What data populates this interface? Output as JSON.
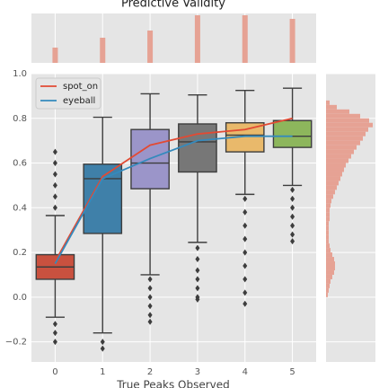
{
  "chart_data": {
    "type": "box",
    "title": "Predictive Validity",
    "xlabel": "True Peaks Observed",
    "categories": [
      "0",
      "1",
      "2",
      "3",
      "4",
      "5"
    ],
    "ylim": [
      -0.29,
      1.0
    ],
    "yticks": [
      {
        "value": -0.2,
        "label": "−0.2"
      },
      {
        "value": 0.0,
        "label": "0.0"
      },
      0.2,
      0.4,
      0.6,
      0.8,
      {
        "value": 1.0,
        "label": "1.0"
      }
    ],
    "grid": true,
    "legend": "upper left",
    "boxes": [
      {
        "whisker_low": -0.09,
        "q1": 0.08,
        "median": 0.135,
        "q3": 0.19,
        "whisker_high": 0.365,
        "color": "#c9513f",
        "fliers": [
          0.4,
          0.45,
          0.5,
          0.55,
          0.6,
          0.65,
          -0.12,
          -0.16,
          -0.2
        ]
      },
      {
        "whisker_low": -0.16,
        "q1": 0.285,
        "median": 0.53,
        "q3": 0.595,
        "whisker_high": 0.805,
        "color": "#3f80a9",
        "fliers": [
          -0.2,
          -0.23
        ]
      },
      {
        "whisker_low": 0.1,
        "q1": 0.485,
        "median": 0.6,
        "q3": 0.75,
        "whisker_high": 0.91,
        "color": "#9b95c9",
        "fliers": [
          0.08,
          0.04,
          0.0,
          -0.04,
          -0.08,
          -0.11
        ]
      },
      {
        "whisker_low": 0.245,
        "q1": 0.56,
        "median": 0.695,
        "q3": 0.775,
        "whisker_high": 0.905,
        "color": "#777777",
        "fliers": [
          0.22,
          0.17,
          0.12,
          0.08,
          0.04,
          0.0,
          -0.01
        ]
      },
      {
        "whisker_low": 0.46,
        "q1": 0.65,
        "median": 0.725,
        "q3": 0.78,
        "whisker_high": 0.925,
        "color": "#e9b96b",
        "fliers": [
          0.44,
          0.38,
          0.32,
          0.26,
          0.2,
          0.14,
          0.08,
          0.02,
          -0.03
        ]
      },
      {
        "whisker_low": 0.5,
        "q1": 0.67,
        "median": 0.72,
        "q3": 0.79,
        "whisker_high": 0.935,
        "color": "#8db65c",
        "fliers": [
          0.48,
          0.44,
          0.4,
          0.36,
          0.32,
          0.28,
          0.25
        ]
      }
    ],
    "series": [
      {
        "name": "spot_on",
        "color": "#e24a33",
        "values": [
          0.16,
          0.54,
          0.68,
          0.73,
          0.75,
          0.8
        ]
      },
      {
        "name": "eyeball",
        "color": "#348abd",
        "values": [
          0.15,
          0.53,
          0.62,
          0.7,
          0.72,
          0.72
        ]
      }
    ],
    "top_hist": {
      "values": [
        17,
        28,
        36,
        53,
        53,
        49
      ],
      "ylim": [
        0,
        55
      ],
      "color": "#e6a294"
    },
    "right_hist": {
      "color": "#e6a294",
      "xlim": [
        0,
        55
      ],
      "bins": [
        0,
        0.02,
        0.04,
        0.06,
        0.08,
        0.1,
        0.12,
        0.14,
        0.16,
        0.18,
        0.2,
        0.22,
        0.24,
        0.26,
        0.28,
        0.3,
        0.32,
        0.34,
        0.36,
        0.38,
        0.4,
        0.42,
        0.44,
        0.46,
        0.48,
        0.5,
        0.52,
        0.54,
        0.56,
        0.58,
        0.6,
        0.62,
        0.64,
        0.66,
        0.68,
        0.7,
        0.72,
        0.74,
        0.76,
        0.78,
        0.8,
        0.82,
        0.84,
        0.86,
        0.88
      ],
      "values": [
        2,
        3,
        4,
        5,
        7,
        9,
        10,
        10,
        9,
        7,
        5,
        4,
        3,
        3,
        3,
        3,
        3,
        4,
        4,
        4,
        5,
        6,
        8,
        10,
        12,
        14,
        16,
        18,
        20,
        22,
        25,
        28,
        31,
        34,
        38,
        41,
        44,
        47,
        52,
        48,
        38,
        26,
        12,
        4
      ]
    }
  }
}
